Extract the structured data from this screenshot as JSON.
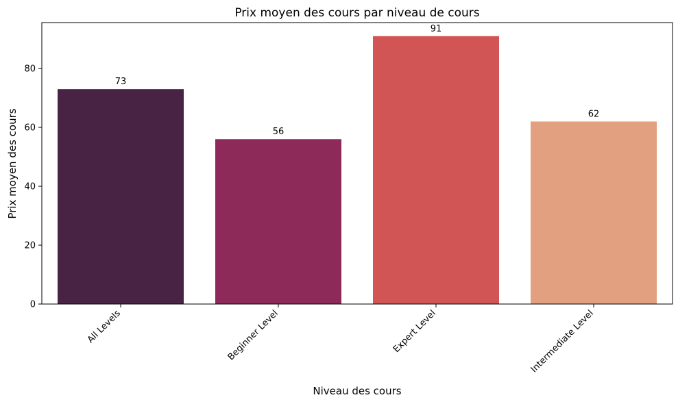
{
  "chart_data": {
    "type": "bar",
    "title": "Prix moyen des cours par niveau de cours",
    "xlabel": "Niveau des cours",
    "ylabel": "Prix moyen des cours",
    "categories": [
      "All Levels",
      "Beginner Level",
      "Expert Level",
      "Intermediate Level"
    ],
    "values": [
      73,
      56,
      91,
      62
    ],
    "data_labels": [
      "73",
      "56",
      "91",
      "62"
    ],
    "colors": [
      "#482343",
      "#8e2a59",
      "#d25556",
      "#e3a081"
    ],
    "ylim": [
      0,
      95.6
    ],
    "yticks": [
      0,
      20,
      40,
      60,
      80
    ],
    "grid": false,
    "legend": "none"
  }
}
